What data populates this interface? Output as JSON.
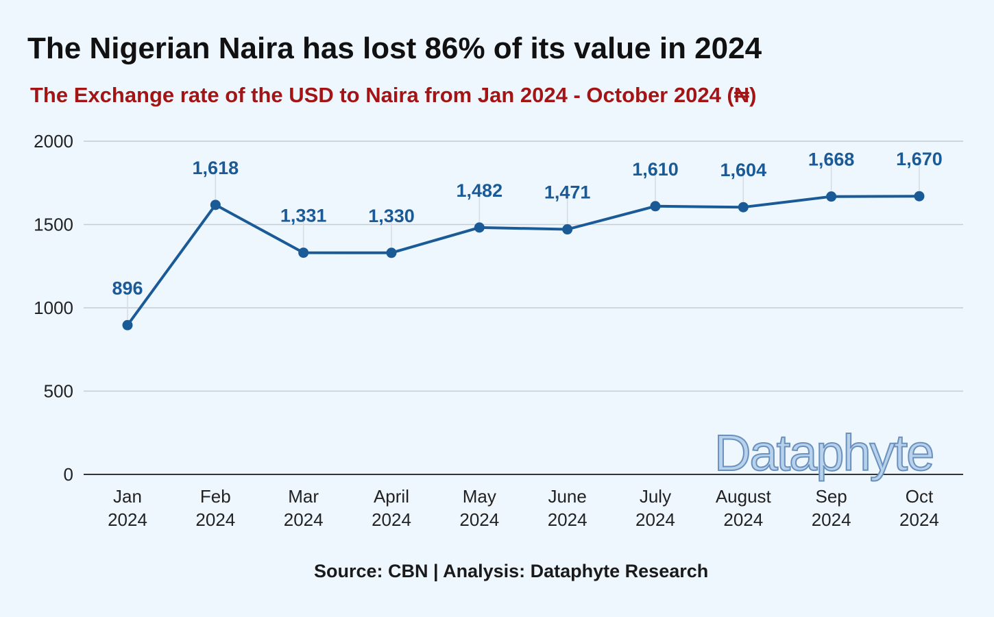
{
  "title": "The Nigerian Naira has lost 86% of its value in 2024",
  "subtitle": "The Exchange rate of the USD to Naira from Jan 2024 - October 2024 (₦)",
  "source": "Source: CBN | Analysis: Dataphyte Research",
  "watermark": "Dataphyte",
  "colors": {
    "background": "#eef6fe",
    "line": "#1a5a96",
    "data_label": "#1a5a96",
    "subtitle": "#a31515",
    "gridline": "#c5ccd4"
  },
  "chart_data": {
    "type": "line",
    "categories": [
      [
        "Jan",
        "2024"
      ],
      [
        "Feb",
        "2024"
      ],
      [
        "Mar",
        "2024"
      ],
      [
        "April",
        "2024"
      ],
      [
        "May",
        "2024"
      ],
      [
        "June",
        "2024"
      ],
      [
        "July",
        "2024"
      ],
      [
        "August",
        "2024"
      ],
      [
        "Sep",
        "2024"
      ],
      [
        "Oct",
        "2024"
      ]
    ],
    "values": [
      896,
      1618,
      1331,
      1330,
      1482,
      1471,
      1610,
      1604,
      1668,
      1670
    ],
    "data_labels": [
      "896",
      "1,618",
      "1,331",
      "1,330",
      "1,482",
      "1,471",
      "1,610",
      "1,604",
      "1,668",
      "1,670"
    ],
    "ylim": [
      0,
      2000
    ],
    "yticks": [
      0,
      500,
      1000,
      1500,
      2000
    ],
    "grid": true,
    "legend": "none",
    "xlabel": "",
    "ylabel": ""
  }
}
